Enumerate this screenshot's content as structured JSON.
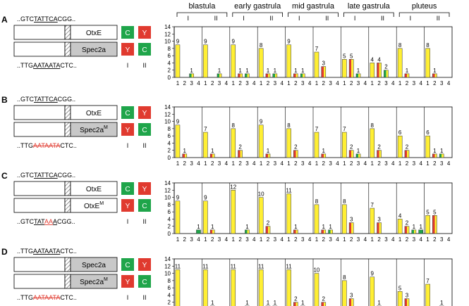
{
  "stages": [
    {
      "label": "blastula"
    },
    {
      "label": "early gastrula"
    },
    {
      "label": "mid gastrula"
    },
    {
      "label": "late gastrula"
    },
    {
      "label": "pluteus"
    }
  ],
  "replicate_labels": [
    "I",
    "II"
  ],
  "yticks": [
    "0",
    "2",
    "4",
    "6",
    "8",
    "10",
    "12",
    "14"
  ],
  "xticks": [
    "1",
    "2",
    "3",
    "4"
  ],
  "colors": {
    "yellow": "#ffef33",
    "red": "#e03a2f",
    "green": "#1fa54a",
    "gray": "#c8c8c8",
    "dark": "#555555"
  },
  "panels": [
    {
      "letter": "A",
      "top_seq": {
        "pre": "..GTC",
        "mid": "TATTCA",
        "post": "CGG.."
      },
      "construct_top": "OtxE",
      "construct_bottom": "Spec2a",
      "construct_bottom_sup": "",
      "top_row_colors": [
        "green",
        "red"
      ],
      "top_row_letters": [
        "C",
        "Y"
      ],
      "bottom_row_colors": [
        "red",
        "green"
      ],
      "bottom_row_letters": [
        "Y",
        "C"
      ],
      "bottom_seq": {
        "pre": "..TTG",
        "mid": "AATAATA",
        "post": "CTC..",
        "mutant": false
      },
      "roman": [
        "I",
        "II"
      ]
    },
    {
      "letter": "B",
      "top_seq": {
        "pre": "..GTC",
        "mid": "TATTCA",
        "post": "CGG.."
      },
      "construct_top": "OtxE",
      "construct_bottom": "Spec2a",
      "construct_bottom_sup": "M",
      "top_row_colors": [
        "green",
        "red"
      ],
      "top_row_letters": [
        "C",
        "Y"
      ],
      "bottom_row_colors": [
        "red",
        "green"
      ],
      "bottom_row_letters": [
        "Y",
        "C"
      ],
      "bottom_seq": {
        "pre": "..TTG",
        "mid": "AATAATA",
        "post": "CTC..",
        "mutant": true
      },
      "roman": [
        "I",
        "II"
      ]
    },
    {
      "letter": "C",
      "top_seq": {
        "pre": "..GTC",
        "mid": "TATTCA",
        "post": "CGG.."
      },
      "construct_top": "OtxE",
      "construct_bottom": "OtxE",
      "construct_bottom_sup": "M",
      "top_row_colors": [
        "green",
        "red"
      ],
      "top_row_letters": [
        "C",
        "Y"
      ],
      "bottom_row_colors": [
        "red",
        "green"
      ],
      "bottom_row_letters": [
        "Y",
        "C"
      ],
      "bottom_seq": {
        "pre": "..GTC",
        "mid": "TATAAA",
        "post": "CGG..",
        "mutant": "partial"
      },
      "roman": [
        "I",
        "II"
      ]
    },
    {
      "letter": "D",
      "top_seq": {
        "pre": "..TTG",
        "mid": "AATAATA",
        "post": "CTC.."
      },
      "construct_top": "Spec2a",
      "construct_bottom": "Spec2a",
      "construct_bottom_sup": "M",
      "top_row_colors": [
        "green",
        "red"
      ],
      "top_row_letters": [
        "C",
        "Y"
      ],
      "bottom_row_colors": [
        "red",
        "green"
      ],
      "bottom_row_letters": [
        "Y",
        "C"
      ],
      "bottom_seq": {
        "pre": "..TTG",
        "mid": "AATAATA",
        "post": "CTC..",
        "mutant": true
      },
      "roman": [
        "I",
        "II"
      ]
    }
  ],
  "chart_data": [
    {
      "type": "bar",
      "panel": "A",
      "ylim": [
        0,
        14
      ],
      "categories": [
        "1",
        "2",
        "3",
        "4"
      ],
      "groups": [
        [
          9,
          0,
          1,
          0
        ],
        [
          9,
          0,
          1,
          0
        ],
        [
          9,
          1,
          1,
          0
        ],
        [
          8,
          1,
          1,
          0
        ],
        [
          9,
          1,
          1,
          0
        ],
        [
          7,
          3,
          0,
          0
        ],
        [
          5,
          5,
          1,
          0
        ],
        [
          4,
          4,
          2,
          0
        ],
        [
          8,
          1,
          0,
          0
        ],
        [
          8,
          1,
          0,
          0
        ]
      ]
    },
    {
      "type": "bar",
      "panel": "B",
      "ylim": [
        0,
        14
      ],
      "categories": [
        "1",
        "2",
        "3",
        "4"
      ],
      "groups": [
        [
          9,
          1,
          0,
          0
        ],
        [
          7,
          1,
          0,
          0
        ],
        [
          8,
          2,
          0,
          0
        ],
        [
          9,
          1,
          0,
          0
        ],
        [
          8,
          2,
          0,
          0
        ],
        [
          7,
          1,
          0,
          0
        ],
        [
          7,
          2,
          1,
          0
        ],
        [
          8,
          2,
          0,
          0
        ],
        [
          6,
          2,
          0,
          0
        ],
        [
          6,
          1,
          1,
          0
        ]
      ]
    },
    {
      "type": "bar",
      "panel": "C",
      "ylim": [
        0,
        14
      ],
      "categories": [
        "1",
        "2",
        "3",
        "4"
      ],
      "groups": [
        [
          9,
          0,
          0,
          1
        ],
        [
          9,
          1,
          0,
          0
        ],
        [
          12,
          0,
          1,
          0
        ],
        [
          10,
          2,
          0,
          0
        ],
        [
          11,
          1,
          0,
          0
        ],
        [
          8,
          1,
          1,
          0
        ],
        [
          8,
          3,
          0,
          0
        ],
        [
          7,
          3,
          0,
          0
        ],
        [
          4,
          2,
          1,
          1
        ],
        [
          5,
          5,
          0,
          0
        ]
      ]
    },
    {
      "type": "bar",
      "panel": "D",
      "ylim": [
        0,
        14
      ],
      "categories": [
        "1",
        "2",
        "3",
        "4"
      ],
      "groups": [
        [
          11,
          0,
          0,
          0
        ],
        [
          11,
          1,
          0,
          0
        ],
        [
          11,
          0,
          1,
          0
        ],
        [
          11,
          1,
          1,
          0
        ],
        [
          11,
          2,
          1,
          0
        ],
        [
          10,
          2,
          0,
          0
        ],
        [
          8,
          3,
          0,
          0
        ],
        [
          9,
          1,
          0,
          0
        ],
        [
          5,
          3,
          0,
          0
        ],
        [
          7,
          0,
          1,
          0
        ]
      ]
    }
  ]
}
